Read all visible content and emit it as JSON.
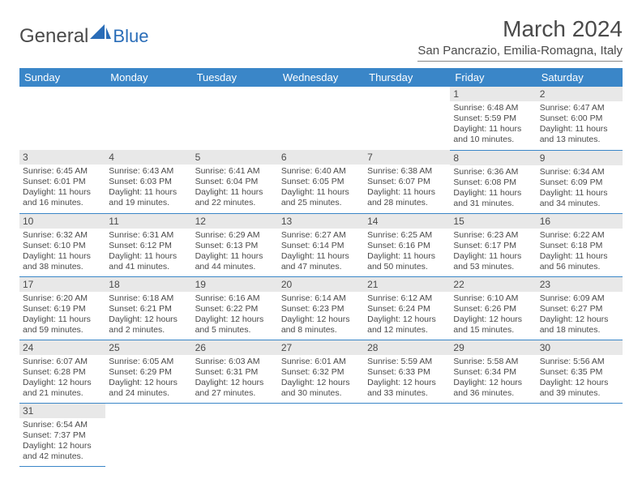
{
  "brand": {
    "part1": "General",
    "part2": "Blue"
  },
  "title": "March 2024",
  "location": "San Pancrazio, Emilia-Romagna, Italy",
  "colors": {
    "header_bg": "#3a86c8",
    "header_fg": "#ffffff",
    "daynum_bg": "#e8e8e8",
    "text": "#4a4a4a",
    "rule": "#3a86c8"
  },
  "weekdays": [
    "Sunday",
    "Monday",
    "Tuesday",
    "Wednesday",
    "Thursday",
    "Friday",
    "Saturday"
  ],
  "weeks": [
    [
      null,
      null,
      null,
      null,
      null,
      {
        "n": "1",
        "sr": "6:48 AM",
        "ss": "5:59 PM",
        "dl": "11 hours and 10 minutes."
      },
      {
        "n": "2",
        "sr": "6:47 AM",
        "ss": "6:00 PM",
        "dl": "11 hours and 13 minutes."
      }
    ],
    [
      {
        "n": "3",
        "sr": "6:45 AM",
        "ss": "6:01 PM",
        "dl": "11 hours and 16 minutes."
      },
      {
        "n": "4",
        "sr": "6:43 AM",
        "ss": "6:03 PM",
        "dl": "11 hours and 19 minutes."
      },
      {
        "n": "5",
        "sr": "6:41 AM",
        "ss": "6:04 PM",
        "dl": "11 hours and 22 minutes."
      },
      {
        "n": "6",
        "sr": "6:40 AM",
        "ss": "6:05 PM",
        "dl": "11 hours and 25 minutes."
      },
      {
        "n": "7",
        "sr": "6:38 AM",
        "ss": "6:07 PM",
        "dl": "11 hours and 28 minutes."
      },
      {
        "n": "8",
        "sr": "6:36 AM",
        "ss": "6:08 PM",
        "dl": "11 hours and 31 minutes."
      },
      {
        "n": "9",
        "sr": "6:34 AM",
        "ss": "6:09 PM",
        "dl": "11 hours and 34 minutes."
      }
    ],
    [
      {
        "n": "10",
        "sr": "6:32 AM",
        "ss": "6:10 PM",
        "dl": "11 hours and 38 minutes."
      },
      {
        "n": "11",
        "sr": "6:31 AM",
        "ss": "6:12 PM",
        "dl": "11 hours and 41 minutes."
      },
      {
        "n": "12",
        "sr": "6:29 AM",
        "ss": "6:13 PM",
        "dl": "11 hours and 44 minutes."
      },
      {
        "n": "13",
        "sr": "6:27 AM",
        "ss": "6:14 PM",
        "dl": "11 hours and 47 minutes."
      },
      {
        "n": "14",
        "sr": "6:25 AM",
        "ss": "6:16 PM",
        "dl": "11 hours and 50 minutes."
      },
      {
        "n": "15",
        "sr": "6:23 AM",
        "ss": "6:17 PM",
        "dl": "11 hours and 53 minutes."
      },
      {
        "n": "16",
        "sr": "6:22 AM",
        "ss": "6:18 PM",
        "dl": "11 hours and 56 minutes."
      }
    ],
    [
      {
        "n": "17",
        "sr": "6:20 AM",
        "ss": "6:19 PM",
        "dl": "11 hours and 59 minutes."
      },
      {
        "n": "18",
        "sr": "6:18 AM",
        "ss": "6:21 PM",
        "dl": "12 hours and 2 minutes."
      },
      {
        "n": "19",
        "sr": "6:16 AM",
        "ss": "6:22 PM",
        "dl": "12 hours and 5 minutes."
      },
      {
        "n": "20",
        "sr": "6:14 AM",
        "ss": "6:23 PM",
        "dl": "12 hours and 8 minutes."
      },
      {
        "n": "21",
        "sr": "6:12 AM",
        "ss": "6:24 PM",
        "dl": "12 hours and 12 minutes."
      },
      {
        "n": "22",
        "sr": "6:10 AM",
        "ss": "6:26 PM",
        "dl": "12 hours and 15 minutes."
      },
      {
        "n": "23",
        "sr": "6:09 AM",
        "ss": "6:27 PM",
        "dl": "12 hours and 18 minutes."
      }
    ],
    [
      {
        "n": "24",
        "sr": "6:07 AM",
        "ss": "6:28 PM",
        "dl": "12 hours and 21 minutes."
      },
      {
        "n": "25",
        "sr": "6:05 AM",
        "ss": "6:29 PM",
        "dl": "12 hours and 24 minutes."
      },
      {
        "n": "26",
        "sr": "6:03 AM",
        "ss": "6:31 PM",
        "dl": "12 hours and 27 minutes."
      },
      {
        "n": "27",
        "sr": "6:01 AM",
        "ss": "6:32 PM",
        "dl": "12 hours and 30 minutes."
      },
      {
        "n": "28",
        "sr": "5:59 AM",
        "ss": "6:33 PM",
        "dl": "12 hours and 33 minutes."
      },
      {
        "n": "29",
        "sr": "5:58 AM",
        "ss": "6:34 PM",
        "dl": "12 hours and 36 minutes."
      },
      {
        "n": "30",
        "sr": "5:56 AM",
        "ss": "6:35 PM",
        "dl": "12 hours and 39 minutes."
      }
    ],
    [
      {
        "n": "31",
        "sr": "6:54 AM",
        "ss": "7:37 PM",
        "dl": "12 hours and 42 minutes."
      },
      null,
      null,
      null,
      null,
      null,
      null
    ]
  ],
  "labels": {
    "sunrise": "Sunrise:",
    "sunset": "Sunset:",
    "daylight": "Daylight:"
  }
}
